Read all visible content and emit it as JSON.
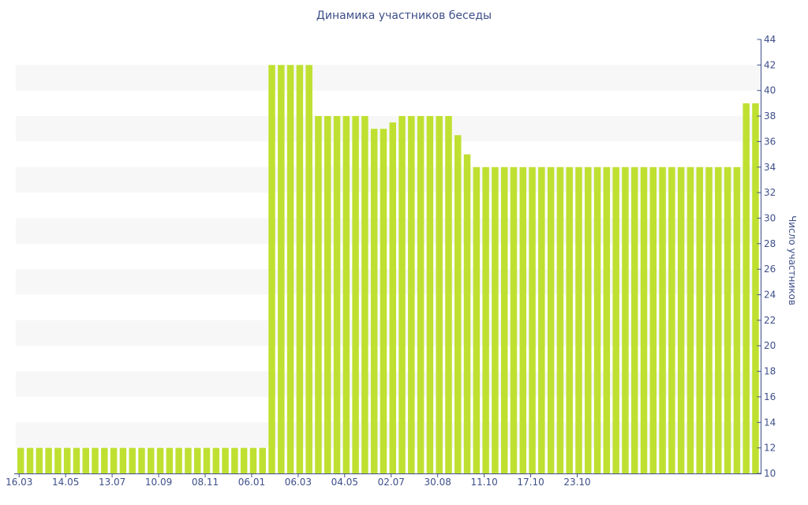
{
  "chart_data": {
    "type": "bar",
    "title": "Динамика участников беседы",
    "xlabel": "",
    "ylabel": "Число участников",
    "ylim": [
      10,
      44
    ],
    "y_ticks": [
      10,
      12,
      14,
      16,
      18,
      20,
      22,
      24,
      26,
      28,
      30,
      32,
      34,
      36,
      38,
      40,
      42,
      44
    ],
    "x_tick_labels": [
      "16.03",
      "14.05",
      "13.07",
      "10.09",
      "08.11",
      "06.01",
      "06.03",
      "04.05",
      "02.07",
      "30.08",
      "11.10",
      "17.10",
      "23.10"
    ],
    "series": [
      {
        "values": [
          12,
          12,
          12,
          12,
          12,
          12,
          12,
          12,
          12,
          12,
          12,
          12,
          12,
          12,
          12,
          12,
          12,
          12,
          12,
          12,
          12,
          12,
          12,
          12,
          12,
          12,
          12,
          42,
          42,
          42,
          42,
          42,
          38,
          38,
          38,
          38,
          38,
          38,
          37,
          37,
          37.5,
          38,
          38,
          38,
          38,
          38,
          38,
          36.5,
          35,
          34,
          34,
          34,
          34,
          34,
          34,
          34,
          34,
          34,
          34,
          34,
          34,
          34,
          34,
          34,
          34,
          34,
          34,
          34,
          34,
          34,
          34,
          34,
          34,
          34,
          34,
          34,
          34,
          34,
          39,
          39
        ]
      }
    ],
    "bar_color": "#bfe031",
    "band_color": "#f7f7f7",
    "axis_color": "#3e4f8a",
    "y_axis_side": "right",
    "grid": "alternating horizontal bands"
  }
}
